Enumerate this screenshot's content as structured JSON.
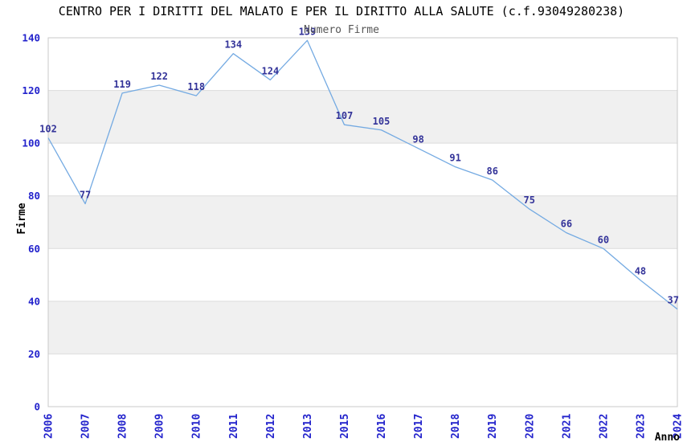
{
  "chart_data": {
    "type": "line",
    "title": "CENTRO PER I DIRITTI DEL MALATO E PER IL DIRITTO ALLA SALUTE (c.f.93049280238)",
    "subtitle": "Numero Firme",
    "xlabel": "Anno",
    "ylabel": "Firme",
    "categories": [
      "2006",
      "2007",
      "2008",
      "2009",
      "2010",
      "2011",
      "2012",
      "2013",
      "2015",
      "2016",
      "2017",
      "2018",
      "2019",
      "2020",
      "2021",
      "2022",
      "2023",
      "2024"
    ],
    "values": [
      102,
      77,
      119,
      122,
      118,
      134,
      124,
      139,
      107,
      105,
      98,
      91,
      86,
      75,
      66,
      60,
      48,
      37
    ],
    "ylim": [
      0,
      140
    ],
    "ytick_step": 20,
    "yticks": [
      0,
      20,
      40,
      60,
      80,
      100,
      120,
      140
    ],
    "grid": true,
    "legend": "none",
    "point_labels_visible": true,
    "colors": {
      "line": "#74aae2",
      "point_label": "#333399",
      "axis_tick_label": "#2323cc",
      "band_fill": "#f0f0f0",
      "grid_line": "#dcdcdc",
      "plot_border": "#c9c9c9",
      "title": "#000000",
      "subtitle": "#555555",
      "axis_title": "#000000",
      "background": "#ffffff"
    }
  }
}
